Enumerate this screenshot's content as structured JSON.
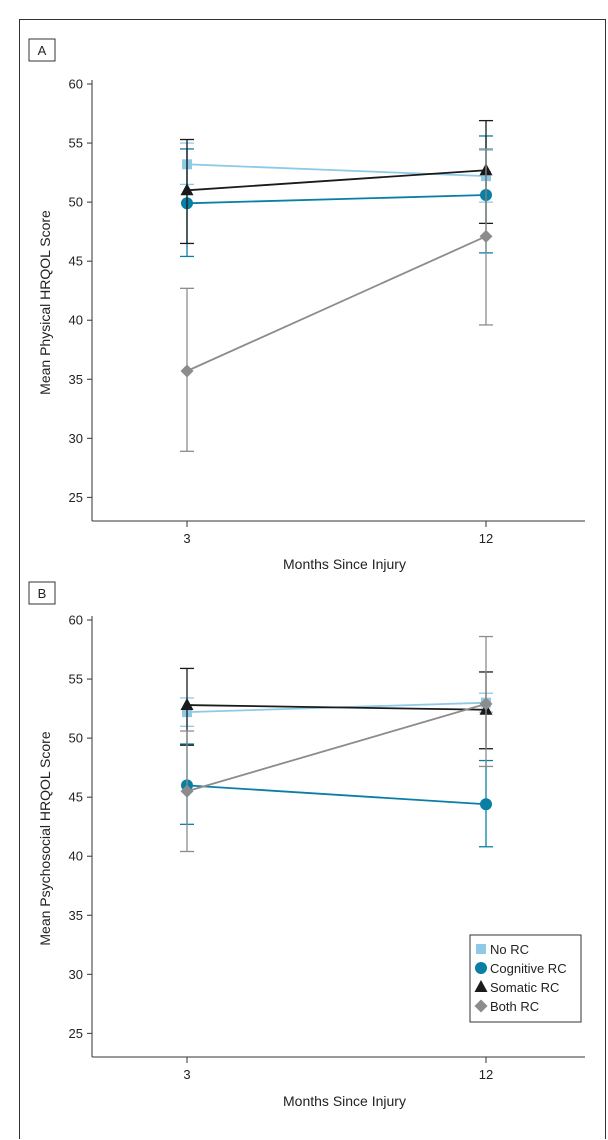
{
  "colors": {
    "no_rc": "#8ecae6",
    "cognitive_rc": "#0a7fa6",
    "somatic_rc": "#1a1a1a",
    "both_rc": "#8c8c8c",
    "axis": "#333333"
  },
  "chart_data": [
    {
      "type": "line",
      "panel_label": "A",
      "xlabel": "Months Since Injury",
      "ylabel": "Mean Physical HRQOL Score",
      "x": [
        "3",
        "12"
      ],
      "ylim": [
        23,
        60
      ],
      "yticks": [
        25,
        30,
        35,
        40,
        45,
        50,
        55,
        60
      ],
      "series": [
        {
          "name": "No RC",
          "marker": "square",
          "color_key": "no_rc",
          "values": [
            53.2,
            52.2
          ],
          "ci_low": [
            51.5,
            50.0
          ],
          "ci_high": [
            55.0,
            54.4
          ]
        },
        {
          "name": "Cognitive RC",
          "marker": "circle",
          "color_key": "cognitive_rc",
          "values": [
            49.9,
            50.6
          ],
          "ci_low": [
            45.4,
            45.7
          ],
          "ci_high": [
            54.5,
            55.6
          ]
        },
        {
          "name": "Somatic RC",
          "marker": "triangle",
          "color_key": "somatic_rc",
          "values": [
            51.0,
            52.7
          ],
          "ci_low": [
            46.5,
            48.2
          ],
          "ci_high": [
            55.3,
            56.9
          ]
        },
        {
          "name": "Both RC",
          "marker": "diamond",
          "color_key": "both_rc",
          "values": [
            35.7,
            47.1
          ],
          "ci_low": [
            28.9,
            39.6
          ],
          "ci_high": [
            42.7,
            54.5
          ]
        }
      ]
    },
    {
      "type": "line",
      "panel_label": "B",
      "xlabel": "Months Since Injury",
      "ylabel": "Mean Psychosocial HRQOL Score",
      "x": [
        "3",
        "12"
      ],
      "ylim": [
        23,
        60
      ],
      "yticks": [
        25,
        30,
        35,
        40,
        45,
        50,
        55,
        60
      ],
      "series": [
        {
          "name": "No RC",
          "marker": "square",
          "color_key": "no_rc",
          "values": [
            52.2,
            53.0
          ],
          "ci_low": [
            51.0,
            52.2
          ],
          "ci_high": [
            53.4,
            53.8
          ]
        },
        {
          "name": "Cognitive RC",
          "marker": "circle",
          "color_key": "cognitive_rc",
          "values": [
            46.0,
            44.4
          ],
          "ci_low": [
            42.7,
            40.8
          ],
          "ci_high": [
            49.5,
            48.1
          ]
        },
        {
          "name": "Somatic RC",
          "marker": "triangle",
          "color_key": "somatic_rc",
          "values": [
            52.8,
            52.4
          ],
          "ci_low": [
            49.4,
            49.1
          ],
          "ci_high": [
            55.9,
            55.6
          ]
        },
        {
          "name": "Both RC",
          "marker": "diamond",
          "color_key": "both_rc",
          "values": [
            45.5,
            52.9
          ],
          "ci_low": [
            40.4,
            47.6
          ],
          "ci_high": [
            50.6,
            58.6
          ]
        }
      ],
      "legend": {
        "position": "bottom-right",
        "entries": [
          "No RC",
          "Cognitive RC",
          "Somatic RC",
          "Both RC"
        ]
      }
    }
  ]
}
